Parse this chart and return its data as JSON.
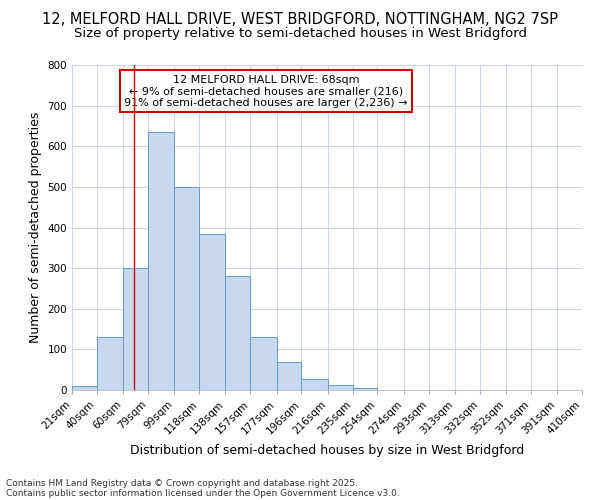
{
  "title1": "12, MELFORD HALL DRIVE, WEST BRIDGFORD, NOTTINGHAM, NG2 7SP",
  "title2": "Size of property relative to semi-detached houses in West Bridgford",
  "xlabel": "Distribution of semi-detached houses by size in West Bridgford",
  "ylabel": "Number of semi-detached properties",
  "footnote1": "Contains HM Land Registry data © Crown copyright and database right 2025.",
  "footnote2": "Contains public sector information licensed under the Open Government Licence v3.0.",
  "bin_labels": [
    "21sqm",
    "40sqm",
    "60sqm",
    "79sqm",
    "99sqm",
    "118sqm",
    "138sqm",
    "157sqm",
    "177sqm",
    "196sqm",
    "216sqm",
    "235sqm",
    "254sqm",
    "274sqm",
    "293sqm",
    "313sqm",
    "332sqm",
    "352sqm",
    "371sqm",
    "391sqm",
    "410sqm"
  ],
  "bar_values": [
    10,
    130,
    300,
    635,
    500,
    385,
    280,
    130,
    70,
    28,
    12,
    6,
    0,
    0,
    0,
    0,
    0,
    0,
    0,
    0
  ],
  "bar_color": "#c8d8f0",
  "bar_edge_color": "#6699cc",
  "ylim": [
    0,
    800
  ],
  "yticks": [
    0,
    100,
    200,
    300,
    400,
    500,
    600,
    700,
    800
  ],
  "property_size": 68,
  "bin_edges": [
    21,
    40,
    60,
    79,
    99,
    118,
    138,
    157,
    177,
    196,
    216,
    235,
    254,
    274,
    293,
    313,
    332,
    352,
    371,
    391,
    410
  ],
  "annotation_title": "12 MELFORD HALL DRIVE: 68sqm",
  "annotation_line1": "← 9% of semi-detached houses are smaller (216)",
  "annotation_line2": "91% of semi-detached houses are larger (2,236) →",
  "vline_color": "#cc0000",
  "annotation_box_color": "#cc0000",
  "background_color": "#ffffff",
  "grid_color": "#c8d4e8",
  "title1_fontsize": 10.5,
  "title2_fontsize": 9.5,
  "axis_label_fontsize": 9,
  "tick_fontsize": 7.5,
  "annotation_fontsize": 8,
  "footnote_fontsize": 6.5
}
